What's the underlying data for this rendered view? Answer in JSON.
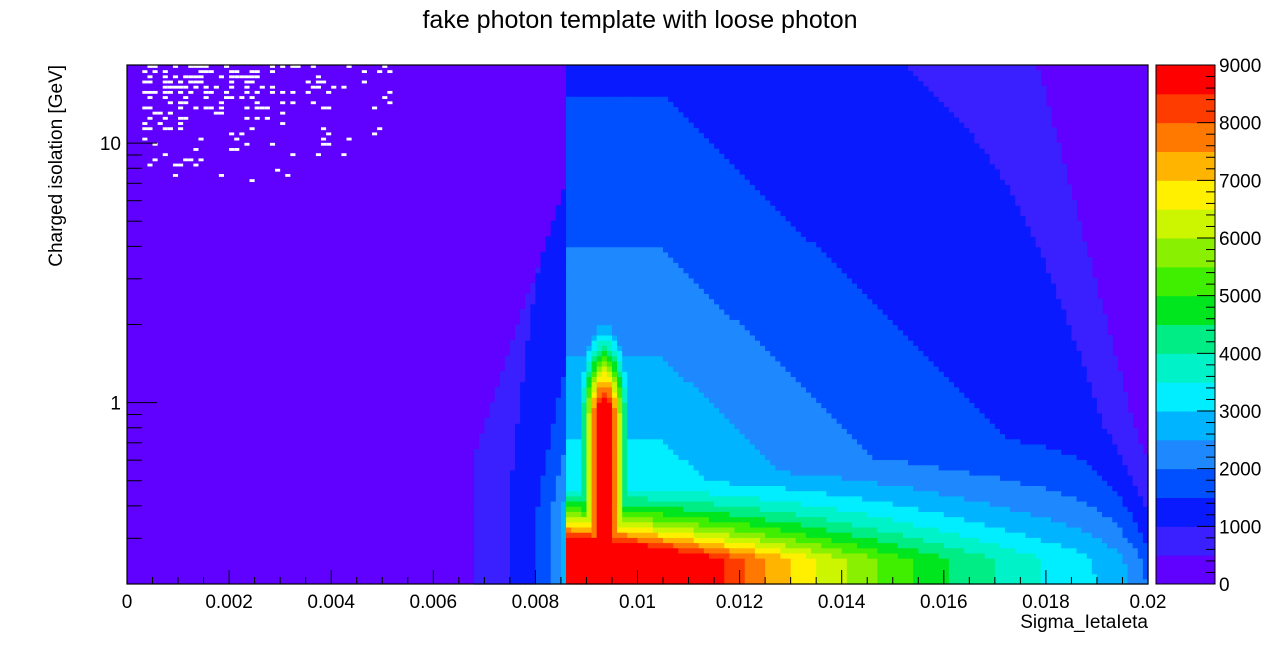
{
  "chart_data": {
    "type": "heatmap",
    "title": "fake photon template with loose photon",
    "xlabel": "Sigma_IetaIeta",
    "ylabel": "Charged isolation [GeV]",
    "x_range": [
      0,
      0.02
    ],
    "y_range": [
      0.2,
      20
    ],
    "y_scale": "log",
    "z_range": [
      0,
      9000
    ],
    "x_ticks": [
      0,
      0.002,
      0.004,
      0.006,
      0.008,
      0.01,
      0.012,
      0.014,
      0.016,
      0.018,
      0.02
    ],
    "x_tick_labels": [
      "0",
      "0.002",
      "0.004",
      "0.006",
      "0.008",
      "0.01",
      "0.012",
      "0.014",
      "0.016",
      "0.018",
      "0.02"
    ],
    "y_tick_labels": [
      {
        "value": 1,
        "label": "1"
      },
      {
        "value": 10,
        "label": "10"
      }
    ],
    "z_ticks": [
      0,
      1000,
      2000,
      3000,
      4000,
      5000,
      6000,
      7000,
      8000,
      9000
    ],
    "z_tick_labels": [
      "0",
      "1000",
      "2000",
      "3000",
      "4000",
      "5000",
      "6000",
      "7000",
      "8000",
      "9000"
    ],
    "palette": [
      "#6000ff",
      "#3a20ff",
      "#0a1aff",
      "#0050ff",
      "#1e88ff",
      "#00b4ff",
      "#00eeff",
      "#00f2c8",
      "#00ec84",
      "#00e61e",
      "#40ee00",
      "#88f000",
      "#ccf500",
      "#fff000",
      "#ffb400",
      "#ff7800",
      "#ff3c00",
      "#ff0000"
    ],
    "empty_bin_color": "#ffffff",
    "grid": false,
    "legend": "right color bar",
    "structure": {
      "core_peak": {
        "sieie": [
          0.00895,
          0.0098
        ],
        "iso_max": 1.0,
        "z": 9000
      },
      "main_band_start_sieie": 0.0086,
      "low_tail_start_sieie": [
        0.0068,
        0.0086
      ],
      "falloff_sieie": 0.0195,
      "sparse_empty_bins_region": {
        "sieie": [
          0,
          0.0058
        ],
        "iso": [
          5,
          20
        ]
      }
    }
  }
}
